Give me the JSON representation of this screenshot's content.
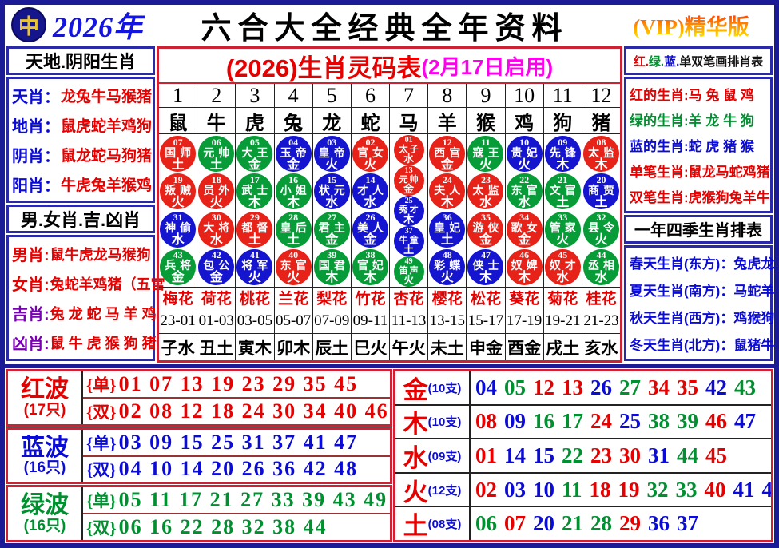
{
  "header": {
    "year": "2026年",
    "title": "六合大全经典全年资料",
    "vip": "(VIP)精华版"
  },
  "icons": {
    "logo_glyph": "中"
  },
  "left_sidebar": {
    "box1_title": "天地.阴阳生肖",
    "tiandi_rows": [
      {
        "label": "天肖",
        "value": "龙兔牛马猴猪"
      },
      {
        "label": "地肖",
        "value": "鼠虎蛇羊鸡狗"
      },
      {
        "label": "阴肖",
        "value": "鼠龙蛇马狗猪"
      },
      {
        "label": "阳肖",
        "value": "牛虎兔羊猴鸡"
      }
    ],
    "box2_title": "男.女肖.吉.凶肖",
    "nannv_rows": [
      {
        "label": "男肖",
        "value": "鼠牛虎龙马猴狗",
        "label_color": "red"
      },
      {
        "label": "女肖",
        "value": "兔蛇羊鸡猪（五宫",
        "label_color": "red"
      },
      {
        "label": "吉肖",
        "value": "兔 龙 蛇 马 羊 鸡",
        "label_color": "purple"
      },
      {
        "label": "凶肖",
        "value": "鼠 牛 虎 猴 狗 猪",
        "label_color": "purple"
      }
    ]
  },
  "main_table": {
    "subtitle": "(2026)生肖灵码表",
    "subtitle_note": "(2月17日启用)",
    "columns": [
      {
        "num": "1",
        "animal": "鼠",
        "flower": "梅花",
        "time": "23-01",
        "branch": "子水",
        "circles": [
          {
            "n": "07",
            "name": "国师",
            "elem": "土"
          },
          {
            "n": "19",
            "name": "叛贼",
            "elem": "火"
          },
          {
            "n": "31",
            "name": "神偷",
            "elem": "水"
          },
          {
            "n": "43",
            "name": "兵将",
            "elem": "金"
          }
        ]
      },
      {
        "num": "2",
        "animal": "牛",
        "flower": "荷花",
        "time": "01-03",
        "branch": "丑土",
        "circles": [
          {
            "n": "06",
            "name": "元帅",
            "elem": "土"
          },
          {
            "n": "18",
            "name": "员外",
            "elem": "火"
          },
          {
            "n": "30",
            "name": "大将",
            "elem": "水"
          },
          {
            "n": "42",
            "name": "包公",
            "elem": "金"
          }
        ]
      },
      {
        "num": "3",
        "animal": "虎",
        "flower": "桃花",
        "time": "03-05",
        "branch": "寅木",
        "circles": [
          {
            "n": "05",
            "name": "大王",
            "elem": "金"
          },
          {
            "n": "17",
            "name": "武士",
            "elem": "木"
          },
          {
            "n": "29",
            "name": "都督",
            "elem": "土"
          },
          {
            "n": "41",
            "name": "将军",
            "elem": "火"
          }
        ]
      },
      {
        "num": "4",
        "animal": "兔",
        "flower": "兰花",
        "time": "05-07",
        "branch": "卯木",
        "circles": [
          {
            "n": "04",
            "name": "玉帝",
            "elem": "金"
          },
          {
            "n": "16",
            "name": "小姐",
            "elem": "木"
          },
          {
            "n": "28",
            "name": "皇后",
            "elem": "土"
          },
          {
            "n": "40",
            "name": "东官",
            "elem": "火"
          }
        ]
      },
      {
        "num": "5",
        "animal": "龙",
        "flower": "梨花",
        "time": "07-09",
        "branch": "辰土",
        "circles": [
          {
            "n": "03",
            "name": "皇帝",
            "elem": "火"
          },
          {
            "n": "15",
            "name": "状元",
            "elem": "水"
          },
          {
            "n": "27",
            "name": "君主",
            "elem": "金"
          },
          {
            "n": "39",
            "name": "国君",
            "elem": "木"
          }
        ]
      },
      {
        "num": "6",
        "animal": "蛇",
        "flower": "竹花",
        "time": "09-11",
        "branch": "巳火",
        "circles": [
          {
            "n": "02",
            "name": "官女",
            "elem": "火"
          },
          {
            "n": "14",
            "name": "才人",
            "elem": "水"
          },
          {
            "n": "26",
            "name": "美人",
            "elem": "金"
          },
          {
            "n": "38",
            "name": "官妃",
            "elem": "木"
          }
        ]
      },
      {
        "num": "7",
        "animal": "马",
        "flower": "杏花",
        "time": "11-13",
        "branch": "午火",
        "circles": [
          {
            "n": "01",
            "name": "太子",
            "elem": "水"
          },
          {
            "n": "13",
            "name": "元帅",
            "elem": "金"
          },
          {
            "n": "25",
            "name": "秀才",
            "elem": "木"
          },
          {
            "n": "37",
            "name": "牛童",
            "elem": "土"
          },
          {
            "n": "49",
            "name": "笛声",
            "elem": "火"
          }
        ]
      },
      {
        "num": "8",
        "animal": "羊",
        "flower": "樱花",
        "time": "13-15",
        "branch": "未土",
        "circles": [
          {
            "n": "12",
            "name": "西宫",
            "elem": "金"
          },
          {
            "n": "24",
            "name": "夫人",
            "elem": "木"
          },
          {
            "n": "36",
            "name": "皇妃",
            "elem": "土"
          },
          {
            "n": "48",
            "name": "彩蝶",
            "elem": "火"
          }
        ]
      },
      {
        "num": "9",
        "animal": "猴",
        "flower": "松花",
        "time": "15-17",
        "branch": "申金",
        "circles": [
          {
            "n": "11",
            "name": "寇王",
            "elem": "火"
          },
          {
            "n": "23",
            "name": "太监",
            "elem": "水"
          },
          {
            "n": "35",
            "name": "游侠",
            "elem": "金"
          },
          {
            "n": "47",
            "name": "侠士",
            "elem": "木"
          }
        ]
      },
      {
        "num": "10",
        "animal": "鸡",
        "flower": "葵花",
        "time": "17-19",
        "branch": "酉金",
        "circles": [
          {
            "n": "10",
            "name": "贵妃",
            "elem": "火"
          },
          {
            "n": "22",
            "name": "东官",
            "elem": "水"
          },
          {
            "n": "34",
            "name": "歌女",
            "elem": "金"
          },
          {
            "n": "46",
            "name": "奴婢",
            "elem": "木"
          }
        ]
      },
      {
        "num": "11",
        "animal": "狗",
        "flower": "菊花",
        "time": "19-21",
        "branch": "戌土",
        "circles": [
          {
            "n": "09",
            "name": "先锋",
            "elem": "木"
          },
          {
            "n": "21",
            "name": "文官",
            "elem": "土"
          },
          {
            "n": "33",
            "name": "管家",
            "elem": "火"
          },
          {
            "n": "45",
            "name": "奴才",
            "elem": "水"
          }
        ]
      },
      {
        "num": "12",
        "animal": "猪",
        "flower": "桂花",
        "time": "21-23",
        "branch": "亥水",
        "circles": [
          {
            "n": "08",
            "name": "太监",
            "elem": "木"
          },
          {
            "n": "20",
            "name": "商贾",
            "elem": "土"
          },
          {
            "n": "32",
            "name": "县令",
            "elem": "火"
          },
          {
            "n": "44",
            "name": "丞相",
            "elem": "水"
          }
        ]
      }
    ]
  },
  "right_sidebar": {
    "box1_title_parts": [
      {
        "text": "红.",
        "color": "red"
      },
      {
        "text": "绿.",
        "color": "green"
      },
      {
        "text": "蓝.",
        "color": "blue"
      },
      {
        "text": "单双笔画排肖表",
        "color": "black"
      }
    ],
    "color_rows": [
      {
        "label": "红的生肖",
        "value": "马 兔 鼠 鸡",
        "color": "red"
      },
      {
        "label": "绿的生肖",
        "value": "羊 龙 牛 狗",
        "color": "green"
      },
      {
        "label": "蓝的生肖",
        "value": "蛇 虎 猪 猴",
        "color": "blue"
      },
      {
        "label": "单笔生肖",
        "value": "鼠龙马蛇鸡猪",
        "color": "red"
      },
      {
        "label": "双笔生肖",
        "value": "虎猴狗兔羊牛",
        "color": "red"
      }
    ],
    "box2_title": "一年四季生肖排表",
    "season_rows": [
      "春天生肖(东方)：兔虎龙",
      "夏天生肖(南方)：马蛇羊",
      "秋天生肖(西方)：鸡猴狗",
      "冬天生肖(北方)：鼠猪牛"
    ]
  },
  "labels": {
    "dan": "{单}",
    "shuang": "{双}"
  },
  "waves": [
    {
      "name": "红波",
      "count": "(17只)",
      "color": "red",
      "dan": "01 07 13 19 23 29 35 45",
      "shuang": "02 08 12 18 24 30 34 40 46"
    },
    {
      "name": "蓝波",
      "count": "(16只)",
      "color": "blue",
      "dan": "03 09 15 25 31 37 41 47",
      "shuang": "04 10 14 20 26 36 42 48"
    },
    {
      "name": "绿波",
      "count": "(16只)",
      "color": "green",
      "dan": "05 11 17 21 27 33 39 43 49",
      "shuang": "06 16 22 28 32 38 44"
    }
  ],
  "elements": [
    {
      "name": "金",
      "count": "(10支)",
      "numbers": [
        "04",
        "05",
        "12",
        "13",
        "26",
        "27",
        "34",
        "35",
        "42",
        "43"
      ]
    },
    {
      "name": "木",
      "count": "(10支)",
      "numbers": [
        "08",
        "09",
        "16",
        "17",
        "24",
        "25",
        "38",
        "39",
        "46",
        "47"
      ]
    },
    {
      "name": "水",
      "count": "(09支)",
      "numbers": [
        "01",
        "14",
        "15",
        "22",
        "23",
        "30",
        "31",
        "44",
        "45"
      ]
    },
    {
      "name": "火",
      "count": "(12支)",
      "numbers": [
        "02",
        "03",
        "10",
        "11",
        "18",
        "19",
        "32",
        "33",
        "40",
        "41",
        "48",
        "49"
      ]
    },
    {
      "name": "土",
      "count": "(08支)",
      "numbers": [
        "06",
        "07",
        "20",
        "21",
        "28",
        "29",
        "36",
        "37"
      ]
    }
  ],
  "number_colors": {
    "red": [
      "01",
      "02",
      "07",
      "08",
      "12",
      "13",
      "18",
      "19",
      "23",
      "24",
      "29",
      "30",
      "34",
      "35",
      "40",
      "45",
      "46"
    ],
    "blue": [
      "03",
      "04",
      "09",
      "10",
      "14",
      "15",
      "20",
      "25",
      "26",
      "31",
      "36",
      "37",
      "41",
      "42",
      "47",
      "48"
    ],
    "green": [
      "05",
      "06",
      "11",
      "16",
      "17",
      "21",
      "22",
      "27",
      "28",
      "32",
      "33",
      "38",
      "39",
      "43",
      "44",
      "49"
    ]
  }
}
